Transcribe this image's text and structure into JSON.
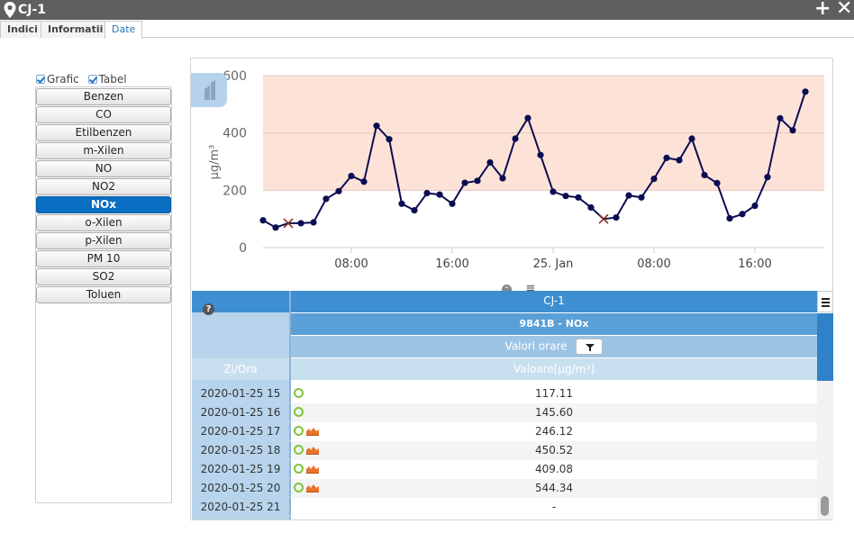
{
  "window": {
    "title": "CJ-1"
  },
  "tabs": [
    {
      "label": "Indici",
      "active": false
    },
    {
      "label": "Informatii",
      "active": false
    },
    {
      "label": "Date",
      "active": true
    }
  ],
  "options": {
    "grafic_label": "Grafic",
    "grafic_checked": true,
    "tabel_label": "Tabel",
    "tabel_checked": true
  },
  "pollutants": [
    {
      "label": "Benzen",
      "active": false
    },
    {
      "label": "CO",
      "active": false
    },
    {
      "label": "Etilbenzen",
      "active": false
    },
    {
      "label": "m-Xilen",
      "active": false
    },
    {
      "label": "NO",
      "active": false
    },
    {
      "label": "NO2",
      "active": false
    },
    {
      "label": "NOx",
      "active": true
    },
    {
      "label": "o-Xilen",
      "active": false
    },
    {
      "label": "p-Xilen",
      "active": false
    },
    {
      "label": "PM 10",
      "active": false
    },
    {
      "label": "SO2",
      "active": false
    },
    {
      "label": "Toluen",
      "active": false
    }
  ],
  "chart_data": {
    "type": "line",
    "ylabel": "µg/m³",
    "ylim": [
      0,
      600
    ],
    "yticks": [
      "0",
      "200",
      "400",
      "600"
    ],
    "xlim": [
      0,
      44.5
    ],
    "xticks": [
      {
        "label": "08:00",
        "at": 7
      },
      {
        "label": "16:00",
        "at": 15
      },
      {
        "label": "25. Jan",
        "at": 23
      },
      {
        "label": "08:00",
        "at": 31
      },
      {
        "label": "16:00",
        "at": 39
      }
    ],
    "band": {
      "from": 200,
      "to": 600,
      "color": "#fde3d7"
    },
    "line_color": "#0b0d52",
    "grid": true,
    "points": [
      {
        "x": 0,
        "y": 95
      },
      {
        "x": 1,
        "y": 70
      },
      {
        "x": 2,
        "y": 85,
        "invalid": true
      },
      {
        "x": 3,
        "y": 85
      },
      {
        "x": 4,
        "y": 88
      },
      {
        "x": 5,
        "y": 170
      },
      {
        "x": 6,
        "y": 197
      },
      {
        "x": 7,
        "y": 250
      },
      {
        "x": 8,
        "y": 230
      },
      {
        "x": 9,
        "y": 425
      },
      {
        "x": 10,
        "y": 378
      },
      {
        "x": 11,
        "y": 153
      },
      {
        "x": 12,
        "y": 130
      },
      {
        "x": 13,
        "y": 190
      },
      {
        "x": 14,
        "y": 185
      },
      {
        "x": 15,
        "y": 153
      },
      {
        "x": 16,
        "y": 226
      },
      {
        "x": 17,
        "y": 233
      },
      {
        "x": 18,
        "y": 297
      },
      {
        "x": 19,
        "y": 242
      },
      {
        "x": 20,
        "y": 380
      },
      {
        "x": 21,
        "y": 452
      },
      {
        "x": 22,
        "y": 323
      },
      {
        "x": 23,
        "y": 195
      },
      {
        "x": 24,
        "y": 180
      },
      {
        "x": 25,
        "y": 175
      },
      {
        "x": 26,
        "y": 140
      },
      {
        "x": 27,
        "y": 100,
        "invalid": true
      },
      {
        "x": 28,
        "y": 105
      },
      {
        "x": 29,
        "y": 182
      },
      {
        "x": 30,
        "y": 175
      },
      {
        "x": 31,
        "y": 240
      },
      {
        "x": 32,
        "y": 313
      },
      {
        "x": 33,
        "y": 305
      },
      {
        "x": 34,
        "y": 380
      },
      {
        "x": 35,
        "y": 253
      },
      {
        "x": 36,
        "y": 225
      },
      {
        "x": 37,
        "y": 102
      },
      {
        "x": 38,
        "y": 117
      },
      {
        "x": 39,
        "y": 146
      },
      {
        "x": 40,
        "y": 246
      },
      {
        "x": 41,
        "y": 451
      },
      {
        "x": 42,
        "y": 409
      },
      {
        "x": 43,
        "y": 544
      }
    ]
  },
  "table": {
    "station": "CJ-1",
    "subtitle": "9841B - NOx",
    "period": "Valori orare",
    "col_date": "Zi/Ora",
    "col_value": "Valoare[µg/m³]",
    "rows": [
      {
        "date": "2020-01-25 15",
        "value": "117.11",
        "valid": true,
        "exceed": false
      },
      {
        "date": "2020-01-25 16",
        "value": "145.60",
        "valid": true,
        "exceed": false
      },
      {
        "date": "2020-01-25 17",
        "value": "246.12",
        "valid": true,
        "exceed": true
      },
      {
        "date": "2020-01-25 18",
        "value": "450.52",
        "valid": true,
        "exceed": true
      },
      {
        "date": "2020-01-25 19",
        "value": "409.08",
        "valid": true,
        "exceed": true
      },
      {
        "date": "2020-01-25 20",
        "value": "544.34",
        "valid": true,
        "exceed": true
      },
      {
        "date": "2020-01-25 21",
        "value": "-",
        "valid": false,
        "exceed": false
      }
    ]
  },
  "colors": {
    "accent": "#0b6fc4",
    "header": "#3d8fd1",
    "ok": "#7ec441",
    "exceed": "#e8732a"
  }
}
